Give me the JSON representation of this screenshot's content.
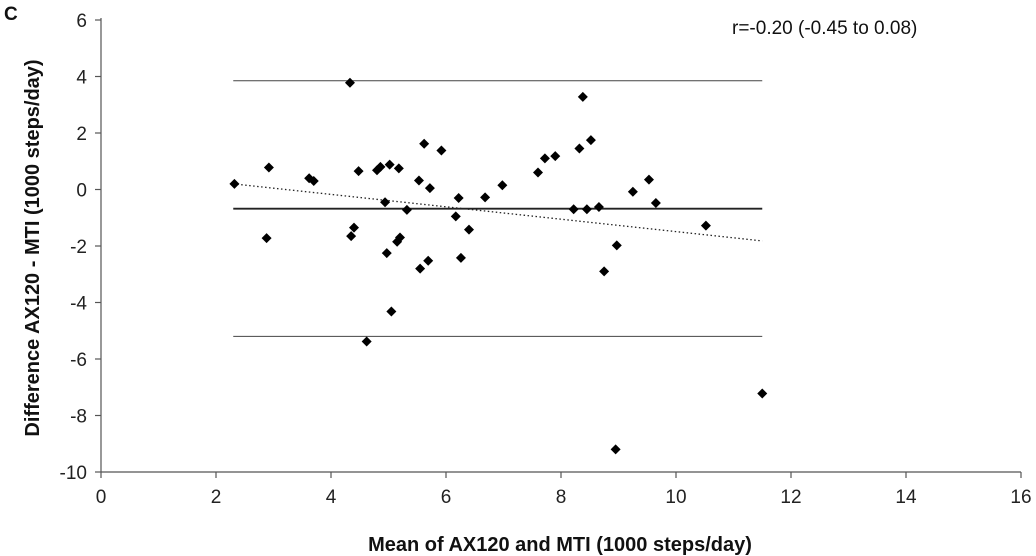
{
  "chart_data": {
    "type": "scatter",
    "panel_label": "C",
    "title": "",
    "xlabel": "Mean of AX120 and MTI (1000 steps/day)",
    "ylabel": "Difference AX120 - MTI (1000 steps/day)",
    "xlim": [
      0,
      16
    ],
    "ylim": [
      -10,
      6
    ],
    "xticks": [
      0,
      2,
      4,
      6,
      8,
      10,
      12,
      14,
      16
    ],
    "yticks": [
      -10,
      -8,
      -6,
      -4,
      -2,
      0,
      2,
      4,
      6
    ],
    "grid": false,
    "annotation": "r=-0.20 (-0.45 to 0.08)",
    "reference_lines": {
      "x_range": [
        2.3,
        11.5
      ],
      "upper_limit": 3.85,
      "mean_difference": -0.68,
      "lower_limit": -5.2
    },
    "trendline": {
      "x": [
        2.3,
        11.5
      ],
      "y": [
        0.2,
        -1.82
      ],
      "style": "dotted"
    },
    "points": [
      {
        "x": 2.32,
        "y": 0.2
      },
      {
        "x": 2.88,
        "y": -1.72
      },
      {
        "x": 2.92,
        "y": 0.78
      },
      {
        "x": 3.62,
        "y": 0.4
      },
      {
        "x": 3.7,
        "y": 0.3
      },
      {
        "x": 4.33,
        "y": 3.78
      },
      {
        "x": 4.35,
        "y": -1.65
      },
      {
        "x": 4.4,
        "y": -1.35
      },
      {
        "x": 4.48,
        "y": 0.65
      },
      {
        "x": 4.62,
        "y": -5.38
      },
      {
        "x": 4.8,
        "y": 0.68
      },
      {
        "x": 4.86,
        "y": 0.8
      },
      {
        "x": 4.94,
        "y": -0.45
      },
      {
        "x": 4.97,
        "y": -2.25
      },
      {
        "x": 5.02,
        "y": 0.88
      },
      {
        "x": 5.05,
        "y": -4.32
      },
      {
        "x": 5.15,
        "y": -1.85
      },
      {
        "x": 5.2,
        "y": -1.7
      },
      {
        "x": 5.18,
        "y": 0.75
      },
      {
        "x": 5.32,
        "y": -0.72
      },
      {
        "x": 5.53,
        "y": 0.32
      },
      {
        "x": 5.55,
        "y": -2.8
      },
      {
        "x": 5.62,
        "y": 1.62
      },
      {
        "x": 5.69,
        "y": -2.52
      },
      {
        "x": 5.72,
        "y": 0.05
      },
      {
        "x": 5.92,
        "y": 1.38
      },
      {
        "x": 6.17,
        "y": -0.95
      },
      {
        "x": 6.22,
        "y": -0.3
      },
      {
        "x": 6.26,
        "y": -2.42
      },
      {
        "x": 6.4,
        "y": -1.42
      },
      {
        "x": 6.68,
        "y": -0.28
      },
      {
        "x": 6.98,
        "y": 0.15
      },
      {
        "x": 7.6,
        "y": 0.6
      },
      {
        "x": 7.72,
        "y": 1.1
      },
      {
        "x": 7.9,
        "y": 1.18
      },
      {
        "x": 8.22,
        "y": -0.7
      },
      {
        "x": 8.32,
        "y": 1.45
      },
      {
        "x": 8.38,
        "y": 3.28
      },
      {
        "x": 8.45,
        "y": -0.7
      },
      {
        "x": 8.52,
        "y": 1.75
      },
      {
        "x": 8.66,
        "y": -0.62
      },
      {
        "x": 8.75,
        "y": -2.9
      },
      {
        "x": 8.95,
        "y": -9.2
      },
      {
        "x": 8.97,
        "y": -1.98
      },
      {
        "x": 9.25,
        "y": -0.08
      },
      {
        "x": 9.53,
        "y": 0.35
      },
      {
        "x": 9.65,
        "y": -0.48
      },
      {
        "x": 10.52,
        "y": -1.28
      },
      {
        "x": 11.5,
        "y": -7.22
      }
    ]
  }
}
